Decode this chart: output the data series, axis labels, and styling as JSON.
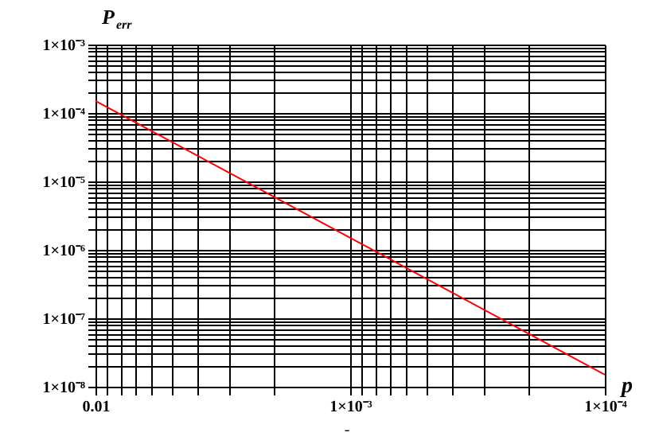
{
  "chart_data": {
    "type": "line",
    "xlabel": "p",
    "ylabel": "P$_{err}$",
    "x": [
      0.01,
      0.001,
      0.0001
    ],
    "series": [
      {
        "color": "#ff0000",
        "values": [
          0.00015,
          1.5e-06,
          1.5e-08
        ]
      }
    ],
    "log": "xy",
    "grid": true,
    "line_style": "solid",
    "xlim": [
      0.01,
      0.0001
    ],
    "ylim": [
      1e-08,
      0.001
    ],
    "xticks": [
      {
        "value": 0.01,
        "label": "0.01"
      },
      {
        "value": 0.001,
        "label": "1×10⁻³"
      },
      {
        "value": 0.0001,
        "label": "1×10⁻⁴"
      }
    ],
    "yticks": [
      {
        "value": 1e-08,
        "label": "1×10⁻⁸"
      },
      {
        "value": 1e-07,
        "label": "1×10⁻⁷"
      },
      {
        "value": 1e-06,
        "label": "1×10⁻⁶"
      },
      {
        "value": 1e-05,
        "label": "1×10⁻⁵"
      },
      {
        "value": 0.0001,
        "label": "1×10⁻⁴"
      },
      {
        "value": 0.001,
        "label": "1×10⁻³"
      }
    ],
    "annotations": [
      "-"
    ]
  }
}
